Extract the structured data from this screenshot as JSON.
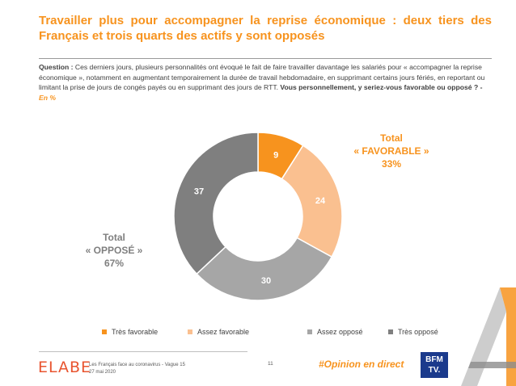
{
  "title": "Travailler plus pour accompagner la reprise économique : deux tiers des Français et trois quarts des actifs y sont opposés",
  "question": {
    "label": "Question :",
    "text": " Ces derniers jours, plusieurs personnalités ont évoqué le fait de faire travailler davantage les salariés pour « accompagner la reprise économique », notamment en augmentant temporairement la durée de travail hebdomadaire, en supprimant certains jours fériés, en reportant ou limitant la prise de jours de congés payés ou en supprimant des jours de RTT. ",
    "ask": "Vous personnellement, y seriez-vous favorable ou opposé ? - ",
    "unit": "En %"
  },
  "totals": {
    "favorable": {
      "line1": "Total",
      "line2": "« FAVORABLE »",
      "line3": "33%"
    },
    "oppose": {
      "line1": "Total",
      "line2": "« OPPOSÉ »",
      "line3": "67%"
    }
  },
  "chart_data": {
    "type": "pie",
    "donut": true,
    "categories": [
      "Très favorable",
      "Assez favorable",
      "Assez opposé",
      "Très opposé"
    ],
    "values": [
      9,
      24,
      30,
      37
    ],
    "colors": [
      "#F7931E",
      "#FAC090",
      "#A6A6A6",
      "#7F7F7F"
    ],
    "label_colors": [
      "#ffffff",
      "#ffffff",
      "#ffffff",
      "#ffffff"
    ],
    "legend": "bottom"
  },
  "footer": {
    "logo": "ELABE",
    "source_line1": "Les Français face au coronavirus - Vague 15",
    "source_line2": "27 mai 2020",
    "page": "11",
    "hashtag": "#Opinion en direct",
    "partner_line1": "BFM",
    "partner_line2": "TV."
  }
}
